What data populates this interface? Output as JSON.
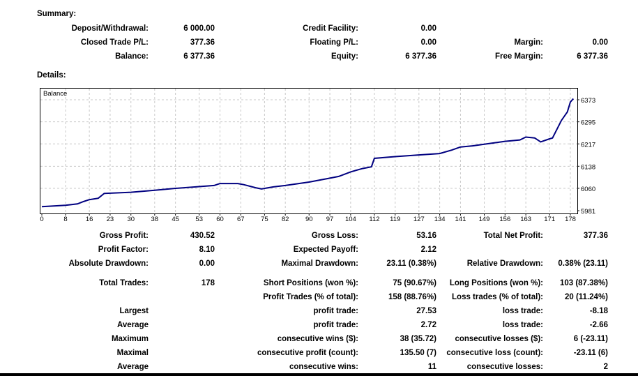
{
  "summary": {
    "title": "Summary:",
    "rows": [
      [
        "Deposit/Withdrawal:",
        "6 000.00",
        "Credit Facility:",
        "0.00",
        "",
        ""
      ],
      [
        "Closed Trade P/L:",
        "377.36",
        "Floating P/L:",
        "0.00",
        "Margin:",
        "0.00"
      ],
      [
        "Balance:",
        "6 377.36",
        "Equity:",
        "6 377.36",
        "Free Margin:",
        "6 377.36"
      ]
    ]
  },
  "details": {
    "title": "Details:",
    "rows": [
      [
        "Gross Profit:",
        "430.52",
        "Gross Loss:",
        "53.16",
        "Total Net Profit:",
        "377.36"
      ],
      [
        "Profit Factor:",
        "8.10",
        "Expected Payoff:",
        "2.12",
        "",
        ""
      ],
      [
        "Absolute Drawdown:",
        "0.00",
        "Maximal Drawdown:",
        "23.11 (0.38%)",
        "Relative Drawdown:",
        "0.38% (23.11)"
      ],
      [
        "Total Trades:",
        "178",
        "Short Positions (won %):",
        "75 (90.67%)",
        "Long Positions (won %):",
        "103 (87.38%)"
      ],
      [
        "",
        "",
        "Profit Trades (% of total):",
        "158 (88.76%)",
        "Loss trades (% of total):",
        "20 (11.24%)"
      ],
      [
        "Largest",
        "",
        "profit trade:",
        "27.53",
        "loss trade:",
        "-8.18"
      ],
      [
        "Average",
        "",
        "profit trade:",
        "2.72",
        "loss trade:",
        "-2.66"
      ],
      [
        "Maximum",
        "",
        "consecutive wins ($):",
        "38 (35.72)",
        "consecutive losses ($):",
        "6 (-23.11)"
      ],
      [
        "Maximal",
        "",
        "consecutive profit (count):",
        "135.50 (7)",
        "consecutive loss (count):",
        "-23.11 (6)"
      ],
      [
        "Average",
        "",
        "consecutive wins:",
        "11",
        "consecutive losses:",
        "2"
      ]
    ]
  },
  "chart_data": {
    "type": "line",
    "legend": "Balance",
    "line_color": "#000080",
    "grid": true,
    "x_ticks": [
      0,
      8,
      16,
      23,
      30,
      38,
      45,
      53,
      60,
      67,
      75,
      82,
      90,
      97,
      104,
      112,
      119,
      127,
      134,
      141,
      149,
      156,
      163,
      171,
      178
    ],
    "y_ticks": [
      5981,
      6060,
      6138,
      6217,
      6295,
      6373
    ],
    "xlim": [
      0,
      179
    ],
    "ylim": [
      5981,
      6373
    ],
    "series": [
      {
        "name": "Balance",
        "x": [
          0,
          8,
          12,
          14,
          16,
          19,
          21,
          30,
          38,
          45,
          53,
          58,
          60,
          66,
          68,
          72,
          74,
          78,
          82,
          90,
          97,
          100,
          104,
          108,
          111,
          112,
          119,
          127,
          134,
          138,
          141,
          145,
          149,
          156,
          161,
          163,
          166,
          168,
          171,
          172,
          175,
          177,
          178,
          179
        ],
        "y": [
          5995,
          6000,
          6005,
          6013,
          6020,
          6025,
          6042,
          6046,
          6053,
          6060,
          6066,
          6070,
          6077,
          6077,
          6073,
          6062,
          6058,
          6065,
          6070,
          6082,
          6096,
          6102,
          6118,
          6130,
          6136,
          6166,
          6172,
          6178,
          6183,
          6195,
          6206,
          6210,
          6216,
          6226,
          6231,
          6241,
          6238,
          6224,
          6235,
          6238,
          6300,
          6330,
          6365,
          6377
        ]
      }
    ]
  }
}
